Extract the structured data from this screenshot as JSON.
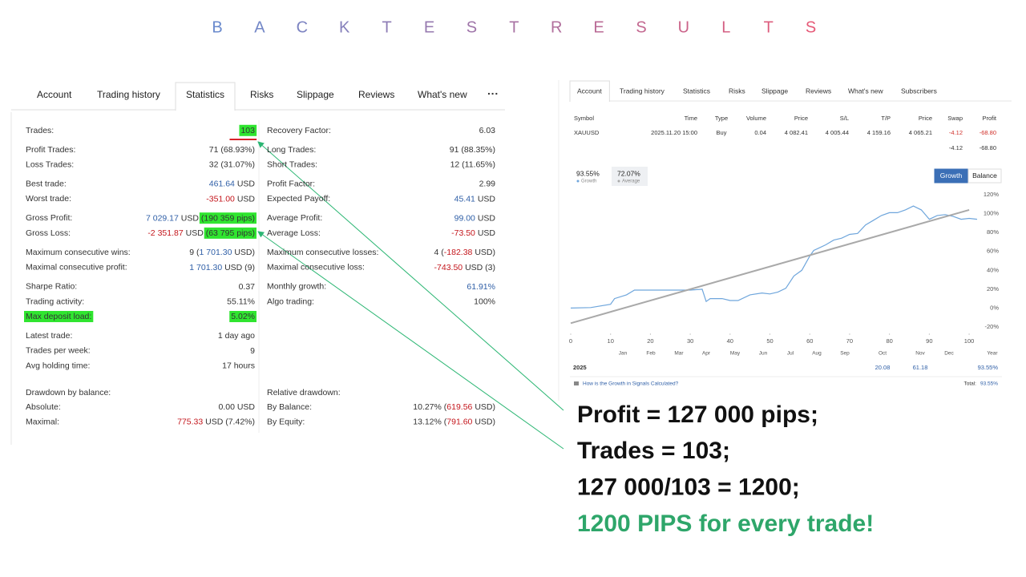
{
  "title": {
    "letters": [
      "B",
      "A",
      "C",
      "K",
      "T",
      "E",
      "S",
      "T",
      "R",
      "E",
      "S",
      "U",
      "L",
      "T",
      "S"
    ]
  },
  "left_panel": {
    "tabs": [
      "Account",
      "Trading history",
      "Statistics",
      "Risks",
      "Slippage",
      "Reviews",
      "What's new"
    ],
    "active_tab": 2,
    "stats": {
      "left": [
        [
          {
            "label": "Trades:",
            "value": [
              {
                "text": "103",
                "highlight": true
              }
            ],
            "underline": "#d8232a"
          }
        ],
        [
          {
            "label": "Profit Trades:",
            "value": [
              {
                "text": "71 (68.93%)"
              }
            ]
          },
          {
            "label": "Loss Trades:",
            "value": [
              {
                "text": "32 (31.07%)"
              }
            ]
          }
        ],
        [
          {
            "label": "Best trade:",
            "value": [
              {
                "text": "461.64",
                "color": "#2f5fa7"
              },
              {
                "text": " USD"
              }
            ]
          },
          {
            "label": "Worst trade:",
            "value": [
              {
                "text": "-351.00",
                "color": "#c4161c"
              },
              {
                "text": " USD"
              }
            ]
          }
        ],
        [
          {
            "label": "Gross Profit:",
            "value": [
              {
                "text": "7 029.17",
                "color": "#2f5fa7"
              },
              {
                "text": " USD "
              },
              {
                "text": "(190 359 pips)",
                "highlight": true
              }
            ]
          },
          {
            "label": "Gross Loss:",
            "value": [
              {
                "text": "-2 351.87",
                "color": "#c4161c"
              },
              {
                "text": " USD "
              },
              {
                "text": "(63 795 pips)",
                "highlight": true
              }
            ]
          }
        ],
        [
          {
            "label": "Maximum consecutive wins:",
            "value": [
              {
                "text": "9 ("
              },
              {
                "text": "1 701.30",
                "color": "#2f5fa7"
              },
              {
                "text": " USD)"
              }
            ]
          },
          {
            "label": "Maximal consecutive profit:",
            "value": [
              {
                "text": "1 701.30",
                "color": "#2f5fa7"
              },
              {
                "text": " USD (9)"
              }
            ]
          }
        ],
        [
          {
            "label": "Sharpe Ratio:",
            "value": [
              {
                "text": "0.37"
              }
            ]
          },
          {
            "label": "Trading activity:",
            "value": [
              {
                "text": "55.11%"
              }
            ]
          },
          {
            "label": "Max deposit load:",
            "label_highlight": true,
            "value": [
              {
                "text": "5.02%",
                "highlight": true
              }
            ]
          }
        ],
        [
          {
            "label": "Latest trade:",
            "value": [
              {
                "text": "1 day ago"
              }
            ]
          },
          {
            "label": "Trades per week:",
            "value": [
              {
                "text": "9"
              }
            ]
          },
          {
            "label": "Avg holding time:",
            "value": [
              {
                "text": "17 hours"
              }
            ]
          }
        ]
      ],
      "right": [
        [
          {
            "label": "Recovery Factor:",
            "value": [
              {
                "text": "6.03"
              }
            ]
          }
        ],
        [
          {
            "label": "Long Trades:",
            "value": [
              {
                "text": "91 (88.35%)"
              }
            ]
          },
          {
            "label": "Short Trades:",
            "value": [
              {
                "text": "12 (11.65%)"
              }
            ]
          }
        ],
        [
          {
            "label": "Profit Factor:",
            "value": [
              {
                "text": "2.99"
              }
            ]
          },
          {
            "label": "Expected Payoff:",
            "value": [
              {
                "text": "45.41",
                "color": "#2f5fa7"
              },
              {
                "text": " USD"
              }
            ]
          }
        ],
        [
          {
            "label": "Average Profit:",
            "value": [
              {
                "text": "99.00",
                "color": "#2f5fa7"
              },
              {
                "text": " USD"
              }
            ]
          },
          {
            "label": "Average Loss:",
            "value": [
              {
                "text": "-73.50",
                "color": "#c4161c"
              },
              {
                "text": " USD"
              }
            ]
          }
        ],
        [
          {
            "label": "Maximum consecutive losses:",
            "value": [
              {
                "text": "4 ("
              },
              {
                "text": "-182.38",
                "color": "#c4161c"
              },
              {
                "text": " USD)"
              }
            ]
          },
          {
            "label": "Maximal consecutive loss:",
            "value": [
              {
                "text": "-743.50",
                "color": "#c4161c"
              },
              {
                "text": " USD (3)"
              }
            ]
          }
        ],
        [
          {
            "label": "Monthly growth:",
            "value": [
              {
                "text": "61.91%",
                "color": "#2f5fa7"
              }
            ]
          },
          {
            "label": "Algo trading:",
            "value": [
              {
                "text": "100%"
              }
            ]
          }
        ]
      ]
    },
    "drawdown": {
      "left": {
        "heading": "Drawdown by balance:",
        "rows": [
          {
            "label": "Absolute:",
            "value": [
              {
                "text": "0.00 USD"
              }
            ]
          },
          {
            "label": "Maximal:",
            "value": [
              {
                "text": "775.33",
                "color": "#c4161c"
              },
              {
                "text": " USD (7.42%)"
              }
            ]
          }
        ]
      },
      "right": {
        "heading": "Relative drawdown:",
        "rows": [
          {
            "label": "By Balance:",
            "value": [
              {
                "text": "10.27% ("
              },
              {
                "text": "619.56",
                "color": "#c4161c"
              },
              {
                "text": " USD)"
              }
            ]
          },
          {
            "label": "By Equity:",
            "value": [
              {
                "text": "13.12% ("
              },
              {
                "text": "791.60",
                "color": "#c4161c"
              },
              {
                "text": " USD)"
              }
            ]
          }
        ]
      }
    }
  },
  "right_panel": {
    "tabs": [
      "Account",
      "Trading history",
      "Statistics",
      "Risks",
      "Slippage",
      "Reviews",
      "What's new",
      "Subscribers"
    ],
    "active_tab": 0,
    "table": {
      "headers": [
        "Symbol",
        "Time",
        "Type",
        "Volume",
        "Price",
        "S/L",
        "T/P",
        "Price",
        "Swap",
        "Profit"
      ],
      "rows": [
        {
          "cells": [
            "XAUUSD",
            "2025.11.20 15:00",
            "Buy",
            "0.04",
            "4 082.41",
            "4 005.44",
            "4 159.16",
            "4 065.21",
            "-4.12",
            "-68.80"
          ],
          "negative_color": "#d0302a"
        }
      ],
      "totals": [
        "-4.12",
        "-68.80"
      ]
    },
    "buttons": [
      "Growth",
      "Balance"
    ],
    "active_button": 0,
    "returns": {
      "months": [
        "Jan",
        "Feb",
        "Mar",
        "Apr",
        "May",
        "Jun",
        "Jul",
        "Aug",
        "Sep",
        "Oct",
        "Nov",
        "Dec"
      ],
      "year_header": "Year",
      "year": "2025",
      "values": [
        null,
        null,
        null,
        null,
        null,
        null,
        null,
        null,
        null,
        "20.08",
        "61.18",
        null
      ],
      "year_total": "93.55%"
    },
    "footer": {
      "link": "How is the Growth in Signals Calculated?",
      "total_label": "Total:",
      "total": "93.55%"
    }
  },
  "chart_data": {
    "type": "line",
    "series": [
      {
        "name": "Growth",
        "summary": "93.55%",
        "color": "#6fa6dc",
        "x": [
          0,
          5,
          10,
          11,
          14,
          16,
          20,
          30,
          33,
          34,
          35,
          38,
          40,
          42,
          45,
          48,
          50,
          52,
          54,
          56,
          58,
          60,
          61,
          62,
          64,
          66,
          68,
          70,
          72,
          74,
          76,
          78,
          80,
          82,
          84,
          86,
          88,
          90,
          92,
          94,
          96,
          98,
          100,
          102
        ],
        "values": [
          0,
          0.5,
          4,
          10,
          14,
          19,
          19,
          19,
          20,
          7,
          10,
          10,
          8,
          8,
          14,
          16,
          15,
          17,
          21,
          34,
          40,
          55,
          61,
          63,
          67,
          72,
          74,
          78,
          79,
          88,
          93,
          98,
          101,
          101,
          104,
          108,
          104,
          94,
          98,
          99,
          97,
          94,
          95,
          94
        ]
      },
      {
        "name": "Average",
        "summary": "72.07%",
        "color": "#a9a9a9",
        "x": [
          0,
          100
        ],
        "values": [
          -16,
          104
        ]
      }
    ],
    "xlim": [
      0,
      102
    ],
    "ylim": [
      -20,
      120
    ],
    "xticks": [
      0,
      10,
      20,
      30,
      40,
      50,
      60,
      70,
      80,
      90,
      100
    ],
    "yticks": [
      {
        "value": -20,
        "label": "-20%"
      },
      {
        "value": 0,
        "label": "0%"
      },
      {
        "value": 20,
        "label": "20%"
      },
      {
        "value": 40,
        "label": "40%"
      },
      {
        "value": 60,
        "label": "60%"
      },
      {
        "value": 80,
        "label": "80%"
      },
      {
        "value": 100,
        "label": "100%"
      },
      {
        "value": 120,
        "label": "120%"
      }
    ],
    "grid": false
  },
  "annotation": {
    "lines": [
      "Profit = 127 000 pips;",
      "Trades = 103;",
      "127 000/103 = 1200;"
    ],
    "conclusion": "1200 PIPS for every trade!",
    "conclusion_color": "#2ea66a"
  }
}
